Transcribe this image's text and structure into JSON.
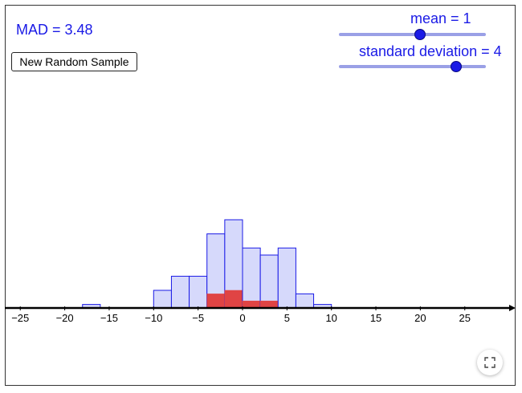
{
  "header": {
    "mad_text": "MAD = 3.48"
  },
  "controls": {
    "new_sample_label": "New Random Sample",
    "mean": {
      "label": "mean = 1",
      "value": 1,
      "min": -10,
      "max": 10
    },
    "std": {
      "label": "standard deviation = 4",
      "value": 4,
      "min": 0,
      "max": 5
    }
  },
  "icons": {
    "fullscreen": "fullscreen-icon"
  },
  "colors": {
    "accent": "#1a1ae6",
    "bar_fill": "#d6d9fb",
    "bar_stroke": "#1a1ae6",
    "highlight": "#e04444"
  },
  "chart_data": {
    "type": "bar",
    "xlim": [
      -27,
      30
    ],
    "ticks": [
      -25,
      -20,
      -15,
      -10,
      -5,
      0,
      5,
      10,
      15,
      20,
      25
    ],
    "tick_labels": [
      "−25",
      "−20",
      "−15",
      "−10",
      "−5",
      "0",
      "5",
      "10",
      "15",
      "20",
      "25"
    ],
    "bin_width": 2,
    "bin_starts": [
      -18,
      -10,
      -8,
      -6,
      -4,
      -2,
      0,
      2,
      4,
      6,
      8,
      10
    ],
    "values": [
      1,
      5,
      9,
      9,
      21,
      25,
      17,
      15,
      17,
      4,
      1,
      0
    ],
    "highlight_values": [
      0,
      0,
      0,
      0,
      4,
      5,
      2,
      2,
      0,
      0,
      0,
      0
    ]
  }
}
